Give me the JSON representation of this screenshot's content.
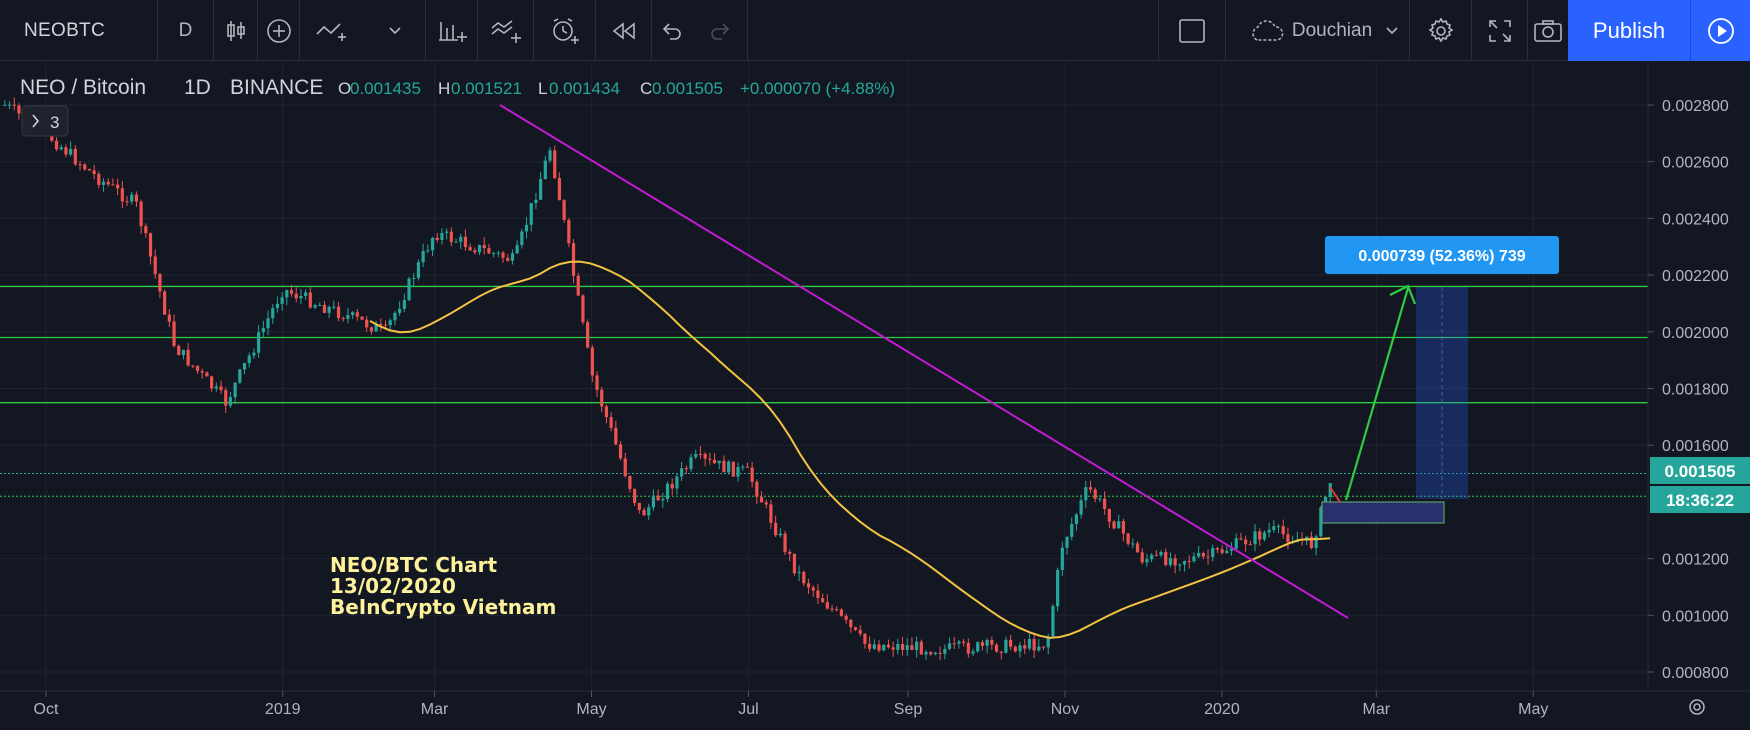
{
  "toolbar": {
    "symbol": "NEOBTC",
    "interval": "D",
    "layout_name": "Douchian",
    "publish_label": "Publish",
    "icons": [
      "candles-icon",
      "plus-circle-icon",
      "indicators-icon",
      "chevron-down-icon",
      "bars-icon",
      "compare-icon",
      "alert-icon",
      "replay-back-icon",
      "undo-icon",
      "redo-icon",
      "rectangle-icon",
      "cloud-icon",
      "gear-icon",
      "fullscreen-icon",
      "camera-icon",
      "play-icon"
    ]
  },
  "legend": {
    "title": "NEO / Bitcoin",
    "interval": "1D",
    "exchange": "BINANCE",
    "open_label": "O",
    "open": "0.001435",
    "high_label": "H",
    "high": "0.001521",
    "low_label": "L",
    "low": "0.001434",
    "close_label": "C",
    "close": "0.001505",
    "change": "+0.000070 (+4.88%)",
    "collapsed_count": "3"
  },
  "annotation": {
    "line1": "NEO/BTC Chart",
    "line2": "13/02/2020",
    "line3": "BeInCrypto Vietnam"
  },
  "measure_label": "0.000739 (52.36%) 739",
  "price_tag": "0.001505",
  "countdown": "18:36:22",
  "colors": {
    "background": "#131722",
    "up": "#26a69a",
    "down": "#ef5350",
    "ma": "#f5c242",
    "trendline": "#c21ad3",
    "horizontal": "#2ecc40",
    "accent": "#2962ff"
  },
  "chart_data": {
    "type": "candlestick",
    "series": [
      {
        "name": "NEO / Bitcoin",
        "type": "candlestick"
      },
      {
        "name": "moving-average",
        "type": "line"
      }
    ],
    "ohlc_last": {
      "open": 0.001435,
      "high": 0.001521,
      "low": 0.001434,
      "close": 0.001505
    },
    "close_path": [
      {
        "x": "2018-09-15",
        "y": 0.0028
      },
      {
        "x": "2018-10-01",
        "y": 0.0027
      },
      {
        "x": "2018-10-20",
        "y": 0.00255
      },
      {
        "x": "2018-11-05",
        "y": 0.00245
      },
      {
        "x": "2018-11-20",
        "y": 0.00195
      },
      {
        "x": "2018-12-10",
        "y": 0.00175
      },
      {
        "x": "2019-01-01",
        "y": 0.00215
      },
      {
        "x": "2019-02-10",
        "y": 0.002
      },
      {
        "x": "2019-03-01",
        "y": 0.00235
      },
      {
        "x": "2019-04-01",
        "y": 0.00225
      },
      {
        "x": "2019-04-15",
        "y": 0.00265
      },
      {
        "x": "2019-05-01",
        "y": 0.00185
      },
      {
        "x": "2019-05-20",
        "y": 0.00135
      },
      {
        "x": "2019-06-10",
        "y": 0.00155
      },
      {
        "x": "2019-07-01",
        "y": 0.0015
      },
      {
        "x": "2019-07-20",
        "y": 0.00115
      },
      {
        "x": "2019-08-15",
        "y": 0.0009
      },
      {
        "x": "2019-09-15",
        "y": 0.00088
      },
      {
        "x": "2019-10-25",
        "y": 0.0009
      },
      {
        "x": "2019-10-31",
        "y": 0.00125
      },
      {
        "x": "2019-11-10",
        "y": 0.00145
      },
      {
        "x": "2019-12-01",
        "y": 0.0012
      },
      {
        "x": "2019-12-25",
        "y": 0.0012
      },
      {
        "x": "2020-01-20",
        "y": 0.0013
      },
      {
        "x": "2020-02-05",
        "y": 0.00125
      },
      {
        "x": "2020-02-13",
        "y": 0.001505
      }
    ],
    "horizontal_levels": [
      0.00216,
      0.00198,
      0.00175,
      0.0015,
      0.00142
    ],
    "measure": {
      "from": 0.001412,
      "to": 0.002151,
      "change": 0.000739,
      "percent": 52.36,
      "ticks": 739
    },
    "y_ticks": [
      "0.002800",
      "0.002600",
      "0.002400",
      "0.002200",
      "0.002000",
      "0.001800",
      "0.001600",
      "0.001200",
      "0.001000",
      "0.000800"
    ],
    "x_ticks": [
      "Oct",
      "2019",
      "Mar",
      "May",
      "Jul",
      "Sep",
      "Nov",
      "2020",
      "Mar",
      "May"
    ],
    "ylim": [
      0.00075,
      0.00295
    ],
    "grid": true
  }
}
